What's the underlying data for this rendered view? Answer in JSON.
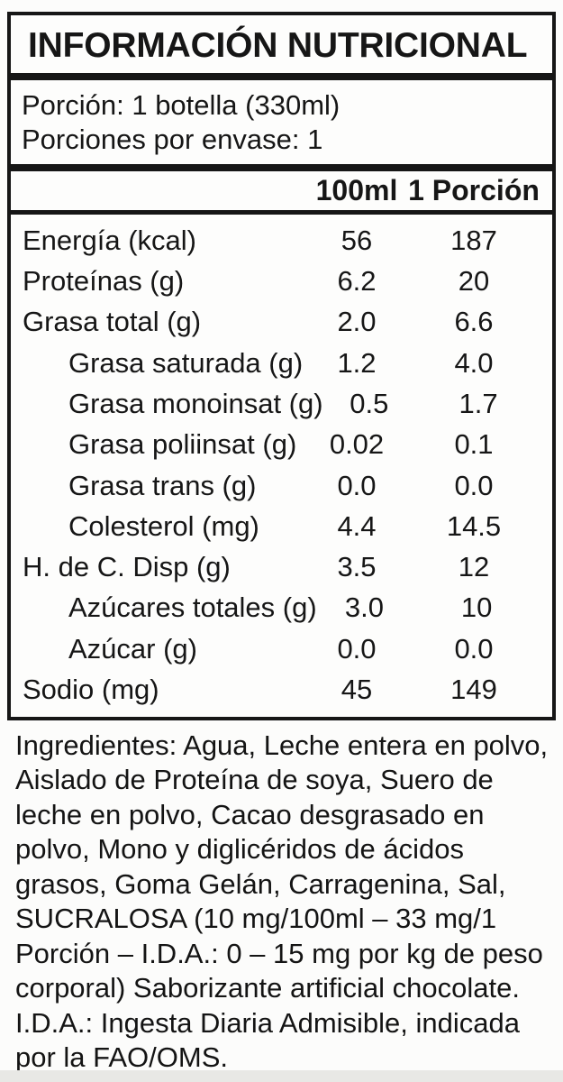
{
  "panel": {
    "title": "INFORMACIÓN NUTRICIONAL",
    "serving_line1": "Porción: 1 botella (330ml)",
    "serving_line2": "Porciones por envase: 1",
    "columns": [
      "100ml",
      "1 Porción"
    ],
    "rows": [
      {
        "label": "Energía (kcal)",
        "indent": false,
        "per_100ml": "56",
        "per_portion": "187"
      },
      {
        "label": "Proteínas (g)",
        "indent": false,
        "per_100ml": "6.2",
        "per_portion": "20"
      },
      {
        "label": "Grasa total (g)",
        "indent": false,
        "per_100ml": "2.0",
        "per_portion": "6.6"
      },
      {
        "label": "Grasa saturada (g)",
        "indent": true,
        "per_100ml": "1.2",
        "per_portion": "4.0"
      },
      {
        "label": "Grasa monoinsat (g)",
        "indent": true,
        "per_100ml": "0.5",
        "per_portion": "1.7"
      },
      {
        "label": "Grasa poliinsat (g)",
        "indent": true,
        "per_100ml": "0.02",
        "per_portion": "0.1"
      },
      {
        "label": "Grasa trans (g)",
        "indent": true,
        "per_100ml": "0.0",
        "per_portion": "0.0"
      },
      {
        "label": "Colesterol (mg)",
        "indent": true,
        "per_100ml": "4.4",
        "per_portion": "14.5"
      },
      {
        "label": "H. de C. Disp (g)",
        "indent": false,
        "per_100ml": "3.5",
        "per_portion": "12"
      },
      {
        "label": "Azúcares totales (g)",
        "indent": true,
        "per_100ml": "3.0",
        "per_portion": "10"
      },
      {
        "label": "Azúcar (g)",
        "indent": true,
        "per_100ml": "0.0",
        "per_portion": "0.0"
      },
      {
        "label": "Sodio (mg)",
        "indent": false,
        "per_100ml": "45",
        "per_portion": "149"
      }
    ]
  },
  "ingredients": {
    "text": "Ingredientes: Agua, Leche entera en polvo, Aislado de Proteína de soya, Suero de leche en polvo, Cacao desgrasado en polvo, Mono y diglicéridos de ácidos grasos, Goma Gelán, Carragenina, Sal, SUCRALOSA (10 mg/100ml – 33 mg/1 Porción – I.D.A.: 0 – 15 mg por kg de peso corporal) Saborizante artificial chocolate. I.D.A.: Ingesta Diaria Admisible, indicada por la FAO/OMS."
  },
  "colors": {
    "border": "#161616",
    "text": "#141414",
    "background": "#fcfcfb",
    "bottom_strip": "#e8e8e5"
  }
}
